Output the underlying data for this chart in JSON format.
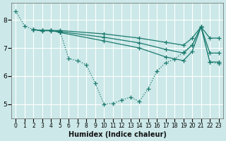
{
  "xlabel": "Humidex (Indice chaleur)",
  "xlim": [
    -0.5,
    23.5
  ],
  "ylim": [
    4.5,
    8.6
  ],
  "yticks": [
    5,
    6,
    7,
    8
  ],
  "xticks": [
    0,
    1,
    2,
    3,
    4,
    5,
    6,
    7,
    8,
    9,
    10,
    11,
    12,
    13,
    14,
    15,
    16,
    17,
    18,
    19,
    20,
    21,
    22,
    23
  ],
  "bg_color": "#cce8e8",
  "grid_color": "#ffffff",
  "line_color": "#1a7a6e",
  "lines": [
    {
      "x": [
        0,
        1,
        2,
        3,
        4,
        5,
        6,
        7,
        8,
        9,
        10,
        11,
        12,
        13,
        14,
        15,
        16,
        17,
        18,
        19,
        20,
        21,
        22,
        23
      ],
      "y": [
        8.3,
        7.78,
        7.65,
        7.6,
        7.6,
        7.6,
        6.62,
        6.55,
        6.4,
        5.75,
        5.0,
        5.02,
        5.15,
        5.25,
        5.1,
        5.55,
        6.18,
        6.48,
        6.6,
        6.85,
        7.1,
        7.75,
        6.5,
        6.45
      ],
      "style": "dotted",
      "has_markers": true
    },
    {
      "x": [
        2,
        3,
        4,
        5,
        10,
        14,
        17,
        19,
        20,
        21,
        22,
        23
      ],
      "y": [
        7.65,
        7.62,
        7.62,
        7.62,
        7.5,
        7.35,
        7.2,
        7.1,
        7.35,
        7.75,
        7.35,
        7.35
      ],
      "style": "solid",
      "has_markers": true
    },
    {
      "x": [
        2,
        3,
        4,
        5,
        10,
        14,
        17,
        19,
        20,
        21,
        22,
        23
      ],
      "y": [
        7.65,
        7.62,
        7.62,
        7.58,
        7.38,
        7.18,
        6.95,
        6.82,
        7.1,
        7.75,
        6.82,
        6.82
      ],
      "style": "solid",
      "has_markers": true
    },
    {
      "x": [
        2,
        3,
        4,
        5,
        10,
        14,
        17,
        19,
        20,
        21,
        22,
        23
      ],
      "y": [
        7.65,
        7.62,
        7.62,
        7.55,
        7.25,
        7.0,
        6.68,
        6.55,
        6.88,
        7.75,
        6.5,
        6.5
      ],
      "style": "solid",
      "has_markers": true
    }
  ],
  "marker": "+",
  "markersize": 4,
  "linewidth": 0.9,
  "xlabel_fontsize": 7,
  "tick_fontsize_x": 5.5,
  "tick_fontsize_y": 6.5
}
